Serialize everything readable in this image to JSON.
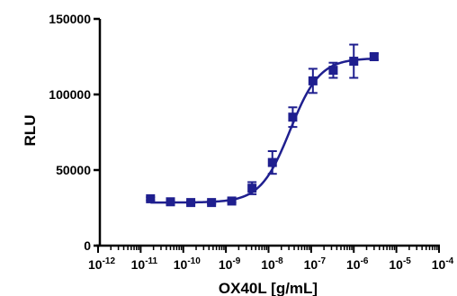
{
  "chart_data": {
    "type": "scatter",
    "title": "",
    "xlabel": "OX40L [g/mL]",
    "ylabel": "RLU",
    "x_scale": "log",
    "xlim": [
      1e-12,
      0.0001
    ],
    "ylim": [
      0,
      150000
    ],
    "grid": false,
    "legend": "none",
    "colors": {
      "series": "#1f1f8f",
      "axis": "#000000"
    },
    "x_ticks": [
      {
        "base": "10",
        "exp": "-12"
      },
      {
        "base": "10",
        "exp": "-11"
      },
      {
        "base": "10",
        "exp": "-10"
      },
      {
        "base": "10",
        "exp": "-9"
      },
      {
        "base": "10",
        "exp": "-8"
      },
      {
        "base": "10",
        "exp": "-7"
      },
      {
        "base": "10",
        "exp": "-6"
      },
      {
        "base": "10",
        "exp": "-5"
      },
      {
        "base": "10",
        "exp": "-4"
      }
    ],
    "y_ticks": [
      "0",
      "50000",
      "100000",
      "150000"
    ],
    "series": [
      {
        "marker": "square",
        "points": [
          {
            "x": 1.7e-11,
            "y": 31000,
            "err": 1000
          },
          {
            "x": 5e-11,
            "y": 29000,
            "err": 800
          },
          {
            "x": 1.5e-10,
            "y": 28500,
            "err": 800
          },
          {
            "x": 4.6e-10,
            "y": 28500,
            "err": 800
          },
          {
            "x": 1.37e-09,
            "y": 29500,
            "err": 1000
          },
          {
            "x": 4.1e-09,
            "y": 38000,
            "err": 4000
          },
          {
            "x": 1.23e-08,
            "y": 55000,
            "err": 7500
          },
          {
            "x": 3.7e-08,
            "y": 85000,
            "err": 6500
          },
          {
            "x": 1.1e-07,
            "y": 109000,
            "err": 8000
          },
          {
            "x": 3.3e-07,
            "y": 116000,
            "err": 5000
          },
          {
            "x": 1e-06,
            "y": 122000,
            "err": 11000
          },
          {
            "x": 3e-06,
            "y": 125000,
            "err": 2000
          }
        ],
        "fit": {
          "model": "4PL",
          "bottom": 28500,
          "top": 124000,
          "ec50": 3.2e-08,
          "hill": 1.25
        }
      }
    ]
  }
}
